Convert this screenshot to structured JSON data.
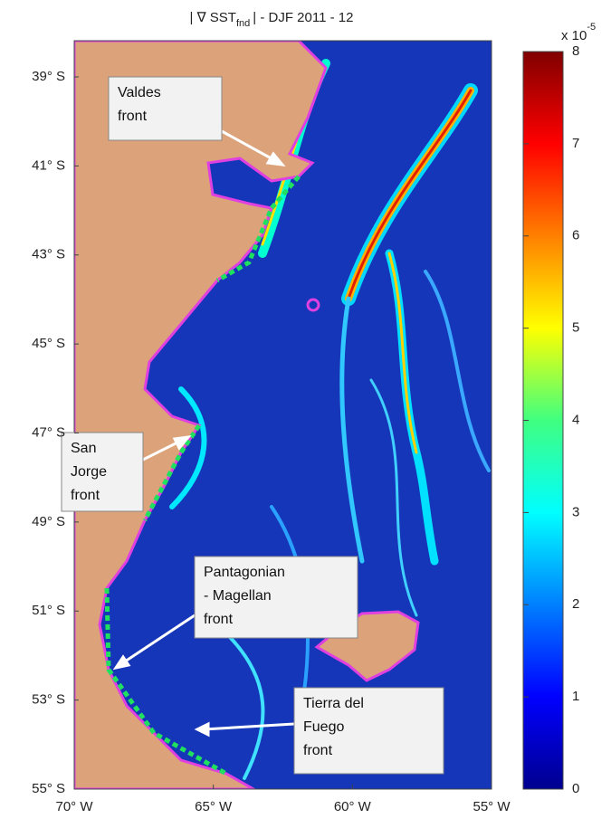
{
  "title": {
    "pre": "| ∇ SST",
    "sub": "fnd",
    "post": "| - DJF 2011 - 12"
  },
  "y_axis": {
    "labels": [
      "39° S",
      "41° S",
      "43° S",
      "45° S",
      "47° S",
      "49° S",
      "51° S",
      "53° S",
      "55° S"
    ]
  },
  "x_axis": {
    "labels": [
      "70° W",
      "65° W",
      "60° W",
      "55° W"
    ]
  },
  "colorbar": {
    "multiplier": "x 10",
    "exponent": "-5",
    "lim": [
      0,
      8
    ],
    "ticks": [
      0,
      1,
      2,
      3,
      4,
      5,
      6,
      7,
      8
    ]
  },
  "annotations": [
    {
      "lines": [
        "Valdes",
        "front"
      ]
    },
    {
      "lines": [
        "San",
        "Jorge",
        "front"
      ]
    },
    {
      "lines": [
        "Pantagonian",
        "- Magellan",
        "front"
      ]
    },
    {
      "lines": [
        "Tierra del",
        "Fuego",
        "front"
      ]
    }
  ]
}
